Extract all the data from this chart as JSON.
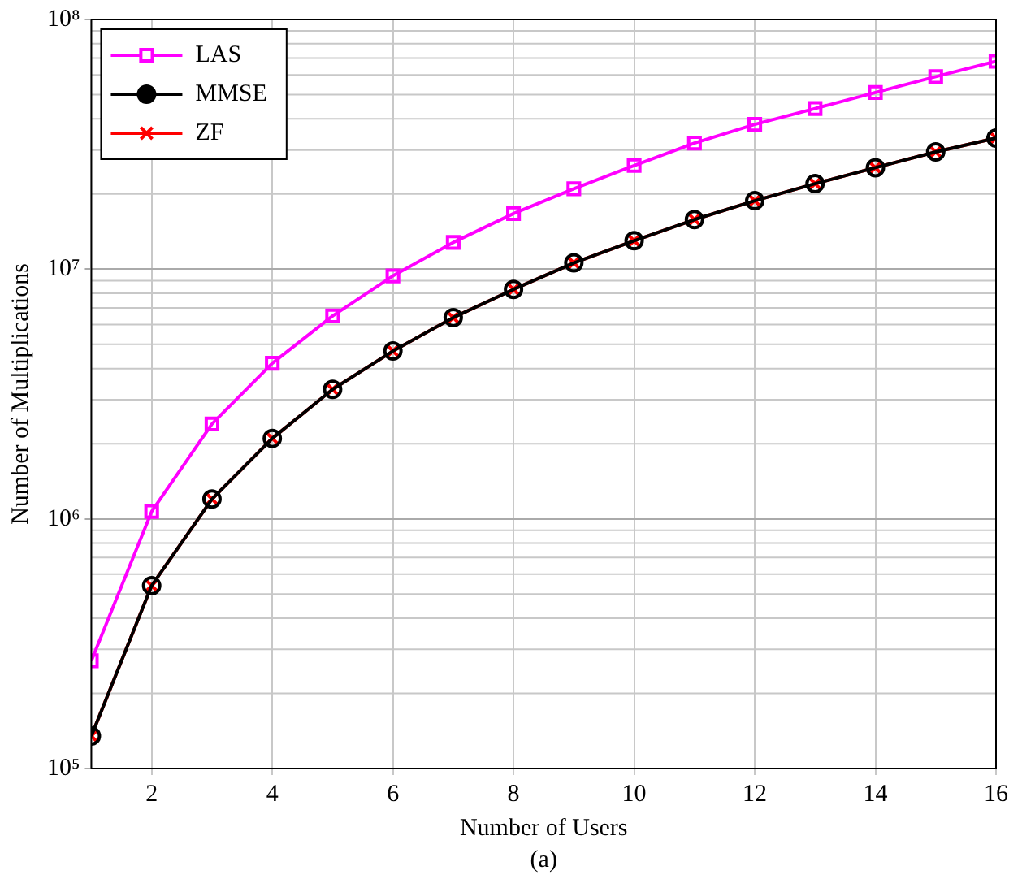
{
  "chart_data": {
    "type": "line",
    "xlabel": "Number of Users",
    "ylabel": "Number of Multiplications",
    "annotations": [
      "(a)"
    ],
    "x": [
      1,
      2,
      3,
      4,
      5,
      6,
      7,
      8,
      9,
      10,
      11,
      12,
      13,
      14,
      15,
      16
    ],
    "series": [
      {
        "name": "LAS",
        "color": "#ff00ff",
        "marker": "square",
        "values": [
          270000,
          1070000,
          2400000,
          4200000,
          6500000,
          9400000,
          12800000,
          16700000,
          21000000,
          26000000,
          32000000,
          38000000,
          44000000,
          51000000,
          59000000,
          68000000
        ]
      },
      {
        "name": "MMSE",
        "color": "#000000",
        "marker": "circle",
        "values": [
          135000,
          540000,
          1200000,
          2100000,
          3300000,
          4700000,
          6400000,
          8300000,
          10600000,
          13000000,
          15800000,
          18800000,
          22000000,
          25500000,
          29500000,
          33500000
        ]
      },
      {
        "name": "ZF",
        "color": "#ff0000",
        "marker": "cross",
        "values": [
          135000,
          540000,
          1200000,
          2100000,
          3300000,
          4700000,
          6400000,
          8300000,
          10600000,
          13000000,
          15800000,
          18800000,
          22000000,
          25500000,
          29500000,
          33500000
        ]
      }
    ],
    "xlim": [
      1,
      16
    ],
    "xticks": [
      2,
      4,
      6,
      8,
      10,
      12,
      14,
      16
    ],
    "ylim": [
      100000,
      100000000
    ],
    "yticks": [
      {
        "value": 100000,
        "label": "10⁵"
      },
      {
        "value": 1000000,
        "label": "10⁶"
      },
      {
        "value": 10000000,
        "label": "10⁷"
      },
      {
        "value": 100000000,
        "label": "10⁸"
      }
    ],
    "log": "y",
    "grid": true,
    "legend": "top left",
    "line_style": "solid"
  }
}
